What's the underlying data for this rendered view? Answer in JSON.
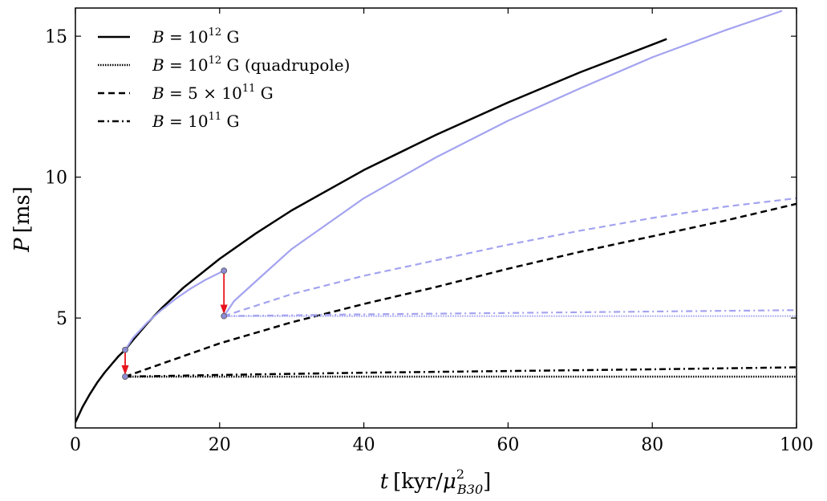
{
  "chart_data": {
    "type": "line",
    "title": "",
    "xlabel_main": "t",
    "xlabel_unit_pre": "[kyr/",
    "xlabel_unit_mu": "μ",
    "xlabel_unit_sup": "2",
    "xlabel_unit_sub": "B30",
    "xlabel_unit_post": "]",
    "ylabel_main": "P",
    "ylabel_unit": "[ms]",
    "xlim": [
      0,
      100
    ],
    "ylim": [
      1.1,
      16
    ],
    "xticks": [
      0,
      20,
      40,
      60,
      80,
      100
    ],
    "yticks": [
      5,
      10,
      15
    ],
    "colors": {
      "black": "#000000",
      "blue": "#a3a3f0",
      "arrow": "#e8131b",
      "marker": "#8d8dd6"
    },
    "legend": [
      {
        "style": "solid",
        "b": "B",
        "eq": " = 10",
        "exp": "12",
        "unit": " G",
        "extra": ""
      },
      {
        "style": "dotted",
        "b": "B",
        "eq": " = 10",
        "exp": "12",
        "unit": " G",
        "extra": " (quadrupole)"
      },
      {
        "style": "dashed",
        "b": "B",
        "eq": " = 5 × 10",
        "exp": "11",
        "unit": " G",
        "extra": ""
      },
      {
        "style": "dashdot",
        "b": "B",
        "eq": " = 10",
        "exp": "11",
        "unit": " G",
        "extra": ""
      }
    ],
    "series": [
      {
        "name": "B=1e12 G",
        "color": "black",
        "style": "solid",
        "x": [
          0,
          1,
          2,
          3,
          4,
          5,
          6,
          6.9,
          8,
          10,
          12,
          15,
          20,
          25,
          30,
          40,
          50,
          60,
          70,
          80,
          82
        ],
        "y": [
          1.3,
          1.85,
          2.3,
          2.7,
          3.05,
          3.35,
          3.65,
          3.87,
          4.22,
          4.82,
          5.36,
          6.08,
          7.1,
          8.0,
          8.82,
          10.25,
          11.5,
          12.65,
          13.72,
          14.7,
          14.9
        ]
      },
      {
        "name": "B=1e12 G (quadrupole)",
        "color": "black",
        "style": "dotted",
        "x": [
          6.9,
          100
        ],
        "y": [
          2.92,
          2.92
        ]
      },
      {
        "name": "B=5e11 G",
        "color": "black",
        "style": "dashed",
        "x": [
          6.9,
          10,
          20,
          30,
          40,
          50,
          60,
          70,
          80,
          90,
          100
        ],
        "y": [
          2.92,
          3.2,
          4.1,
          4.85,
          5.5,
          6.1,
          6.75,
          7.35,
          7.9,
          8.45,
          9.05
        ]
      },
      {
        "name": "B=1e11 G",
        "color": "black",
        "style": "dashdot",
        "x": [
          6.9,
          20,
          40,
          60,
          80,
          100
        ],
        "y": [
          2.92,
          2.98,
          3.06,
          3.12,
          3.18,
          3.25
        ]
      },
      {
        "name": "B=1e12 G (pre-burst)",
        "color": "blue",
        "style": "solid",
        "x": [
          6.9,
          8,
          10,
          12,
          14,
          16,
          18,
          20.6
        ],
        "y": [
          3.87,
          4.3,
          4.85,
          5.3,
          5.7,
          6.05,
          6.35,
          6.68
        ]
      },
      {
        "name": "B=1e12 G (post-burst)",
        "color": "blue",
        "style": "solid",
        "x": [
          20.6,
          22,
          25,
          30,
          40,
          50,
          60,
          70,
          80,
          90,
          98
        ],
        "y": [
          5.07,
          5.6,
          6.3,
          7.45,
          9.25,
          10.7,
          12.0,
          13.15,
          14.25,
          15.2,
          15.9
        ]
      },
      {
        "name": "B=1e12 G quadrupole (blue)",
        "color": "blue",
        "style": "dotted",
        "x": [
          20.6,
          100
        ],
        "y": [
          5.07,
          5.07
        ]
      },
      {
        "name": "B=5e11 G (blue)",
        "color": "blue",
        "style": "dashed",
        "x": [
          20.6,
          30,
          40,
          50,
          60,
          70,
          80,
          90,
          100
        ],
        "y": [
          5.07,
          5.85,
          6.5,
          7.05,
          7.6,
          8.1,
          8.55,
          8.95,
          9.25
        ]
      },
      {
        "name": "B=1e11 G (blue)",
        "color": "blue",
        "style": "dashdot",
        "x": [
          20.6,
          40,
          60,
          80,
          100
        ],
        "y": [
          5.07,
          5.13,
          5.18,
          5.23,
          5.28
        ]
      }
    ],
    "markers": [
      {
        "x": 6.9,
        "y": 3.87
      },
      {
        "x": 6.9,
        "y": 2.92
      },
      {
        "x": 20.6,
        "y": 6.68
      },
      {
        "x": 20.6,
        "y": 5.07
      }
    ],
    "arrows": [
      {
        "x": 6.9,
        "y0": 3.82,
        "y1": 2.98
      },
      {
        "x": 20.6,
        "y0": 6.62,
        "y1": 5.13
      }
    ]
  }
}
